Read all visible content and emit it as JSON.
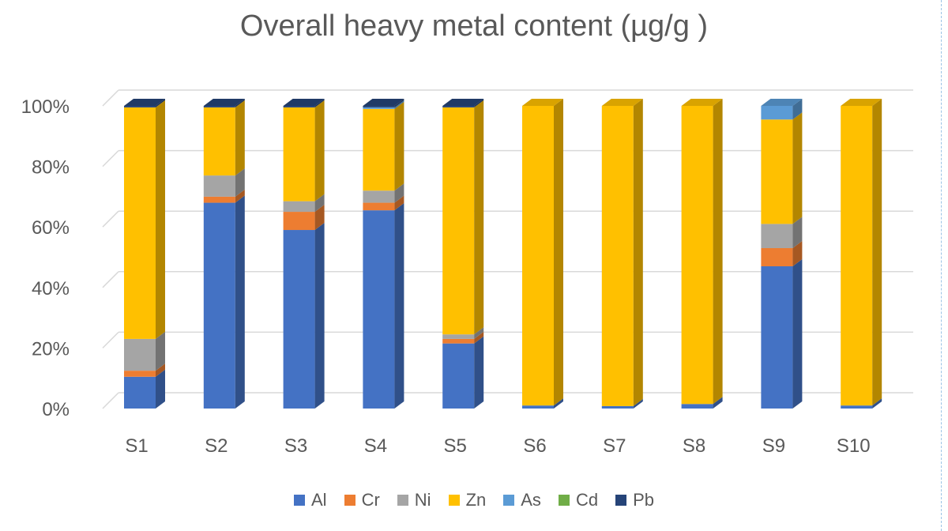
{
  "chart_data": {
    "type": "bar",
    "stacked": "percent",
    "title": "Overall heavy metal content (µg/g )",
    "categories": [
      "S1",
      "S2",
      "S3",
      "S4",
      "S5",
      "S6",
      "S7",
      "S8",
      "S9",
      "S10"
    ],
    "series": [
      {
        "name": "Al",
        "color": "#4472c4",
        "values": [
          10.5,
          68,
          59,
          65.5,
          21.5,
          1,
          0.8,
          1.5,
          47,
          1
        ]
      },
      {
        "name": "Cr",
        "color": "#ed7d31",
        "values": [
          2,
          2,
          6,
          2.5,
          1.5,
          0,
          0,
          0,
          6,
          0
        ]
      },
      {
        "name": "Ni",
        "color": "#a5a5a5",
        "values": [
          10.5,
          7,
          3.5,
          4,
          1.5,
          0,
          0,
          0,
          8,
          0
        ]
      },
      {
        "name": "Zn",
        "color": "#ffc000",
        "values": [
          76.5,
          22.5,
          31,
          27,
          75,
          99,
          99.2,
          98.5,
          34.5,
          99
        ]
      },
      {
        "name": "As",
        "color": "#5b9bd5",
        "values": [
          0,
          0,
          0,
          0.5,
          0,
          0,
          0,
          0,
          4.5,
          0
        ]
      },
      {
        "name": "Cd",
        "color": "#70ad47",
        "values": [
          0,
          0,
          0,
          0,
          0,
          0,
          0,
          0,
          0,
          0
        ]
      },
      {
        "name": "Pb",
        "color": "#264478",
        "values": [
          0.5,
          0.5,
          0.5,
          0.5,
          0.5,
          0,
          0,
          0,
          0,
          0
        ]
      }
    ],
    "yticks": [
      "0%",
      "20%",
      "40%",
      "60%",
      "80%",
      "100%"
    ],
    "ylim": [
      0,
      100
    ],
    "grid": true,
    "legend_position": "bottom",
    "three_d": true
  }
}
